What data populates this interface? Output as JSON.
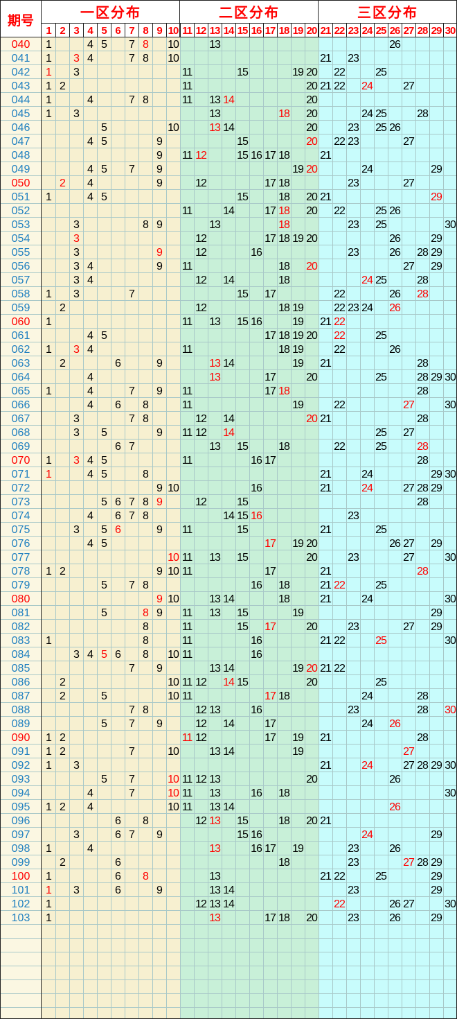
{
  "header": {
    "period_label": "期号",
    "zones": [
      "一区分布",
      "二区分布",
      "三区分布"
    ]
  },
  "colors": {
    "zone1_bg": "#f7f0d0",
    "zone2_bg": "#c8f0d8",
    "zone3_bg": "#c8fcfc",
    "period_bg": "#fbf7e2",
    "grid": "#a8c8c8",
    "border": "#202020",
    "accent_red": "#ff0000",
    "normal_period": "#2080c0",
    "number_black": "#000000"
  },
  "columns": [
    "1",
    "2",
    "3",
    "4",
    "5",
    "6",
    "7",
    "8",
    "9",
    "10",
    "11",
    "12",
    "13",
    "14",
    "15",
    "16",
    "17",
    "18",
    "19",
    "20",
    "21",
    "22",
    "23",
    "24",
    "25",
    "26",
    "27",
    "28",
    "29",
    "30"
  ],
  "rows": [
    {
      "period": "040",
      "hot": true,
      "nums": [
        1,
        4,
        5,
        7,
        8,
        10,
        13,
        26
      ],
      "red": [
        8
      ]
    },
    {
      "period": "041",
      "hot": false,
      "nums": [
        1,
        3,
        4,
        7,
        8,
        10,
        21,
        23
      ],
      "red": [
        3
      ]
    },
    {
      "period": "042",
      "hot": false,
      "nums": [
        1,
        3,
        11,
        15,
        19,
        20,
        22,
        25
      ],
      "red": [
        1
      ]
    },
    {
      "period": "043",
      "hot": false,
      "nums": [
        1,
        2,
        11,
        20,
        21,
        22,
        24,
        27
      ],
      "red": [
        24
      ]
    },
    {
      "period": "044",
      "hot": false,
      "nums": [
        1,
        4,
        7,
        8,
        11,
        13,
        14,
        20
      ],
      "red": [
        14
      ]
    },
    {
      "period": "045",
      "hot": false,
      "nums": [
        1,
        3,
        13,
        18,
        20,
        24,
        25,
        28
      ],
      "red": [
        18
      ]
    },
    {
      "period": "046",
      "hot": false,
      "nums": [
        5,
        10,
        13,
        14,
        20,
        23,
        25,
        26
      ],
      "red": [
        13
      ]
    },
    {
      "period": "047",
      "hot": false,
      "nums": [
        4,
        5,
        9,
        15,
        20,
        22,
        23,
        27
      ],
      "red": [
        20
      ]
    },
    {
      "period": "048",
      "hot": false,
      "nums": [
        9,
        11,
        12,
        15,
        16,
        17,
        18,
        21
      ],
      "red": [
        12
      ]
    },
    {
      "period": "049",
      "hot": false,
      "nums": [
        4,
        5,
        7,
        9,
        19,
        20,
        24,
        29
      ],
      "red": [
        20
      ]
    },
    {
      "period": "050",
      "hot": true,
      "nums": [
        2,
        4,
        9,
        12,
        17,
        18,
        23,
        27
      ],
      "red": [
        2
      ]
    },
    {
      "period": "051",
      "hot": false,
      "nums": [
        1,
        4,
        5,
        15,
        18,
        20,
        21,
        29
      ],
      "red": [
        29
      ]
    },
    {
      "period": "052",
      "hot": false,
      "nums": [
        11,
        14,
        17,
        18,
        20,
        22,
        25,
        26
      ],
      "red": [
        18
      ]
    },
    {
      "period": "053",
      "hot": false,
      "nums": [
        3,
        8,
        9,
        13,
        18,
        23,
        25,
        30
      ],
      "red": [
        18
      ]
    },
    {
      "period": "054",
      "hot": false,
      "nums": [
        3,
        12,
        17,
        18,
        19,
        20,
        26,
        29
      ],
      "red": [
        3
      ]
    },
    {
      "period": "055",
      "hot": false,
      "nums": [
        3,
        9,
        12,
        16,
        23,
        26,
        28,
        29
      ],
      "red": [
        9
      ]
    },
    {
      "period": "056",
      "hot": false,
      "nums": [
        3,
        4,
        9,
        11,
        18,
        20,
        27,
        29
      ],
      "red": [
        20
      ]
    },
    {
      "period": "057",
      "hot": false,
      "nums": [
        3,
        4,
        12,
        14,
        18,
        24,
        25,
        28
      ],
      "red": [
        24
      ]
    },
    {
      "period": "058",
      "hot": false,
      "nums": [
        1,
        3,
        7,
        15,
        17,
        22,
        26,
        28
      ],
      "red": [
        28
      ]
    },
    {
      "period": "059",
      "hot": false,
      "nums": [
        2,
        12,
        18,
        19,
        22,
        23,
        24,
        26
      ],
      "red": [
        26
      ]
    },
    {
      "period": "060",
      "hot": true,
      "nums": [
        1,
        11,
        13,
        15,
        16,
        19,
        21,
        22
      ],
      "red": [
        22
      ]
    },
    {
      "period": "061",
      "hot": false,
      "nums": [
        4,
        5,
        17,
        18,
        19,
        20,
        22,
        25
      ],
      "red": [
        22
      ]
    },
    {
      "period": "062",
      "hot": false,
      "nums": [
        1,
        3,
        4,
        11,
        18,
        19,
        22,
        26
      ],
      "red": [
        3
      ]
    },
    {
      "period": "063",
      "hot": false,
      "nums": [
        2,
        6,
        9,
        13,
        14,
        19,
        21,
        28
      ],
      "red": [
        13
      ]
    },
    {
      "period": "064",
      "hot": false,
      "nums": [
        4,
        13,
        17,
        20,
        25,
        28,
        29,
        30
      ],
      "red": [
        13
      ]
    },
    {
      "period": "065",
      "hot": false,
      "nums": [
        1,
        4,
        7,
        9,
        11,
        17,
        18,
        28
      ],
      "red": [
        18
      ]
    },
    {
      "period": "066",
      "hot": false,
      "nums": [
        4,
        6,
        8,
        11,
        19,
        22,
        27,
        30
      ],
      "red": [
        27
      ]
    },
    {
      "period": "067",
      "hot": false,
      "nums": [
        3,
        7,
        8,
        12,
        14,
        20,
        21,
        28
      ],
      "red": [
        20
      ]
    },
    {
      "period": "068",
      "hot": false,
      "nums": [
        3,
        5,
        9,
        11,
        12,
        14,
        25,
        27
      ],
      "red": [
        14
      ]
    },
    {
      "period": "069",
      "hot": false,
      "nums": [
        6,
        7,
        13,
        15,
        18,
        22,
        25,
        28
      ],
      "red": [
        28
      ]
    },
    {
      "period": "070",
      "hot": true,
      "nums": [
        1,
        3,
        4,
        5,
        11,
        16,
        17,
        28
      ],
      "red": [
        3
      ]
    },
    {
      "period": "071",
      "hot": false,
      "nums": [
        1,
        4,
        5,
        8,
        21,
        24,
        29,
        30
      ],
      "red": [
        1
      ]
    },
    {
      "period": "072",
      "hot": false,
      "nums": [
        9,
        10,
        16,
        21,
        24,
        27,
        28,
        29
      ],
      "red": [
        24
      ]
    },
    {
      "period": "073",
      "hot": false,
      "nums": [
        5,
        6,
        7,
        8,
        9,
        12,
        15,
        28
      ],
      "red": [
        9
      ]
    },
    {
      "period": "074",
      "hot": false,
      "nums": [
        4,
        6,
        7,
        8,
        14,
        15,
        16,
        23
      ],
      "red": [
        16
      ]
    },
    {
      "period": "075",
      "hot": false,
      "nums": [
        3,
        5,
        6,
        9,
        11,
        15,
        21,
        25
      ],
      "red": [
        6
      ]
    },
    {
      "period": "076",
      "hot": false,
      "nums": [
        4,
        5,
        17,
        19,
        20,
        26,
        27,
        29
      ],
      "red": [
        17
      ]
    },
    {
      "period": "077",
      "hot": false,
      "nums": [
        10,
        11,
        13,
        15,
        20,
        23,
        27,
        30
      ],
      "red": [
        10
      ]
    },
    {
      "period": "078",
      "hot": false,
      "nums": [
        1,
        2,
        9,
        10,
        11,
        17,
        21,
        28
      ],
      "red": [
        28
      ]
    },
    {
      "period": "079",
      "hot": false,
      "nums": [
        5,
        7,
        8,
        16,
        18,
        21,
        22,
        25
      ],
      "red": [
        22
      ]
    },
    {
      "period": "080",
      "hot": true,
      "nums": [
        9,
        10,
        13,
        14,
        18,
        21,
        24,
        30
      ],
      "red": [
        9
      ]
    },
    {
      "period": "081",
      "hot": false,
      "nums": [
        5,
        8,
        9,
        11,
        13,
        15,
        19,
        29
      ],
      "red": [
        8
      ]
    },
    {
      "period": "082",
      "hot": false,
      "nums": [
        8,
        11,
        15,
        17,
        20,
        23,
        27,
        29
      ],
      "red": [
        17
      ]
    },
    {
      "period": "083",
      "hot": false,
      "nums": [
        1,
        8,
        11,
        16,
        21,
        22,
        25,
        30
      ],
      "red": [
        25
      ]
    },
    {
      "period": "084",
      "hot": false,
      "nums": [
        3,
        4,
        5,
        6,
        8,
        10,
        11,
        16
      ],
      "red": [
        5
      ]
    },
    {
      "period": "085",
      "hot": false,
      "nums": [
        7,
        9,
        13,
        14,
        19,
        20,
        21,
        22
      ],
      "red": [
        20
      ]
    },
    {
      "period": "086",
      "hot": false,
      "nums": [
        2,
        10,
        11,
        12,
        14,
        15,
        20,
        25
      ],
      "red": [
        14
      ]
    },
    {
      "period": "087",
      "hot": false,
      "nums": [
        2,
        5,
        10,
        11,
        17,
        18,
        24,
        28
      ],
      "red": [
        17
      ]
    },
    {
      "period": "088",
      "hot": false,
      "nums": [
        7,
        8,
        12,
        13,
        16,
        23,
        28,
        30
      ],
      "red": [
        30
      ]
    },
    {
      "period": "089",
      "hot": false,
      "nums": [
        5,
        7,
        9,
        12,
        14,
        17,
        24,
        26
      ],
      "red": [
        26
      ]
    },
    {
      "period": "090",
      "hot": true,
      "nums": [
        1,
        2,
        11,
        12,
        17,
        19,
        21,
        28
      ],
      "red": [
        11
      ]
    },
    {
      "period": "091",
      "hot": false,
      "nums": [
        1,
        2,
        7,
        10,
        13,
        14,
        19,
        27
      ],
      "red": [
        27
      ]
    },
    {
      "period": "092",
      "hot": false,
      "nums": [
        1,
        3,
        21,
        24,
        27,
        28,
        29,
        30
      ],
      "red": [
        24
      ]
    },
    {
      "period": "093",
      "hot": false,
      "nums": [
        5,
        7,
        10,
        11,
        12,
        13,
        20,
        26
      ],
      "red": [
        10
      ]
    },
    {
      "period": "094",
      "hot": false,
      "nums": [
        4,
        7,
        10,
        11,
        13,
        16,
        18,
        30
      ],
      "red": [
        10
      ]
    },
    {
      "period": "095",
      "hot": false,
      "nums": [
        1,
        2,
        4,
        10,
        11,
        13,
        14,
        26
      ],
      "red": [
        26
      ]
    },
    {
      "period": "096",
      "hot": false,
      "nums": [
        6,
        8,
        12,
        13,
        15,
        18,
        20,
        21
      ],
      "red": [
        13
      ]
    },
    {
      "period": "097",
      "hot": false,
      "nums": [
        3,
        6,
        7,
        9,
        15,
        16,
        24,
        29
      ],
      "red": [
        24
      ]
    },
    {
      "period": "098",
      "hot": false,
      "nums": [
        1,
        4,
        13,
        16,
        17,
        19,
        23,
        26
      ],
      "red": [
        13
      ]
    },
    {
      "period": "099",
      "hot": false,
      "nums": [
        2,
        6,
        18,
        23,
        27,
        28,
        29
      ],
      "red": [
        27
      ]
    },
    {
      "period": "100",
      "hot": true,
      "nums": [
        1,
        6,
        8,
        13,
        21,
        22,
        25,
        29
      ],
      "red": [
        8
      ]
    },
    {
      "period": "101",
      "hot": false,
      "nums": [
        1,
        3,
        6,
        9,
        13,
        14,
        23,
        29
      ],
      "red": [
        1
      ]
    },
    {
      "period": "102",
      "hot": false,
      "nums": [
        1,
        12,
        13,
        14,
        22,
        26,
        27,
        30
      ],
      "red": [
        22
      ]
    },
    {
      "period": "103",
      "hot": false,
      "nums": [
        1,
        13,
        17,
        18,
        20,
        23,
        26,
        29
      ],
      "red": [
        13
      ]
    }
  ],
  "empty_rows": 7
}
